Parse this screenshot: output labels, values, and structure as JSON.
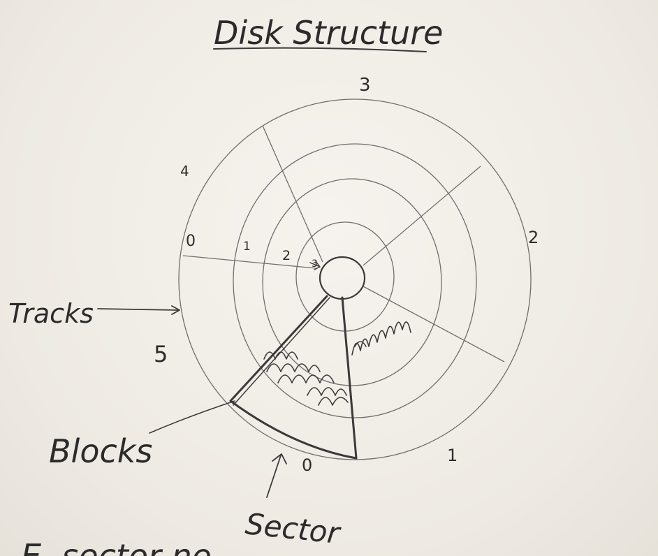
{
  "title": "Disk Structure",
  "labels": {
    "tracks": "Tracks",
    "blocks": "Blocks",
    "sector": "Sector",
    "bottom_cut": "E. sector no"
  },
  "track_numbers": [
    "0",
    "1",
    "2",
    "3"
  ],
  "sector_numbers": [
    "0",
    "1",
    "2",
    "3",
    "4",
    "5"
  ],
  "colors": {
    "ink": "#3a3a3a",
    "board": "#f1ede7"
  }
}
